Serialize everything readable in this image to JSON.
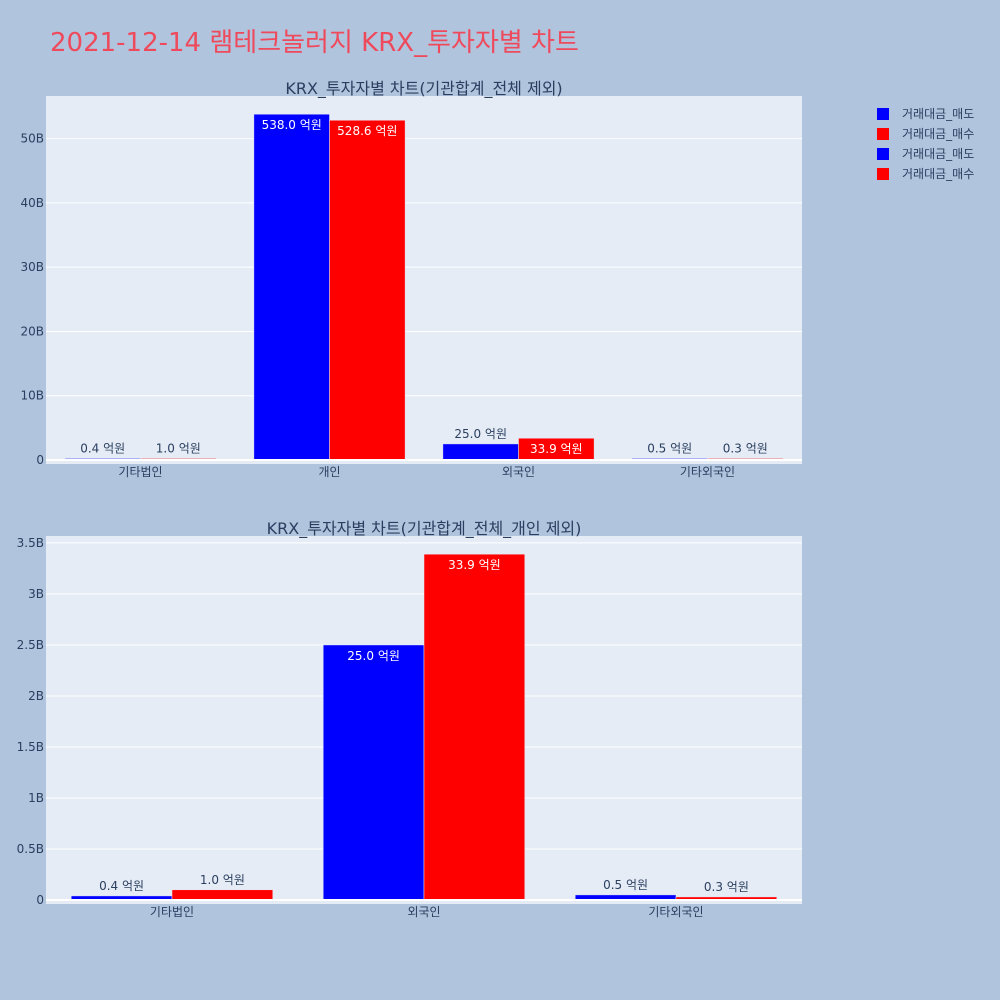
{
  "page_title": "2021-12-14 램테크놀러지 KRX_투자자별 차트",
  "legend": [
    {
      "name": "거래대금_매도",
      "color": "#0000ff"
    },
    {
      "name": "거래대금_매수",
      "color": "#ff0000"
    },
    {
      "name": "거래대금_매도",
      "color": "#0000ff"
    },
    {
      "name": "거래대금_매수",
      "color": "#ff0000"
    }
  ],
  "chart_data": [
    {
      "type": "bar",
      "title": "KRX_투자자별 차트(기관합계_전체 제외)",
      "categories": [
        "기타법인",
        "개인",
        "외국인",
        "기타외국인"
      ],
      "series": [
        {
          "name": "거래대금_매도",
          "color": "#0000ff",
          "values": [
            40000000,
            53800000000,
            2500000000,
            50000000
          ],
          "labels": [
            "0.4 억원",
            "538.0 억원",
            "25.0 억원",
            "0.5 억원"
          ]
        },
        {
          "name": "거래대금_매수",
          "color": "#ff0000",
          "values": [
            100000000,
            52860000000,
            3390000000,
            30000000
          ],
          "labels": [
            "1.0 억원",
            "528.6 억원",
            "33.9 억원",
            "0.3 억원"
          ]
        }
      ],
      "yticks": [
        {
          "value": 0,
          "label": "0"
        },
        {
          "value": 10000000000,
          "label": "10B"
        },
        {
          "value": 20000000000,
          "label": "20B"
        },
        {
          "value": 30000000000,
          "label": "30B"
        },
        {
          "value": 40000000000,
          "label": "40B"
        },
        {
          "value": 50000000000,
          "label": "50B"
        }
      ],
      "ylim": [
        0,
        56630000000
      ],
      "grid": true
    },
    {
      "type": "bar",
      "title": "KRX_투자자별 차트(기관합계_전체_개인 제외)",
      "categories": [
        "기타법인",
        "외국인",
        "기타외국인"
      ],
      "series": [
        {
          "name": "거래대금_매도",
          "color": "#0000ff",
          "values": [
            40000000,
            2500000000,
            50000000
          ],
          "labels": [
            "0.4 억원",
            "25.0 억원",
            "0.5 억원"
          ]
        },
        {
          "name": "거래대금_매수",
          "color": "#ff0000",
          "values": [
            100000000,
            3390000000,
            30000000
          ],
          "labels": [
            "1.0 억원",
            "33.9 억원",
            "0.3 억원"
          ]
        }
      ],
      "yticks": [
        {
          "value": 0,
          "label": "0"
        },
        {
          "value": 500000000,
          "label": "0.5B"
        },
        {
          "value": 1000000000,
          "label": "1B"
        },
        {
          "value": 1500000000,
          "label": "1.5B"
        },
        {
          "value": 2000000000,
          "label": "2B"
        },
        {
          "value": 2500000000,
          "label": "2.5B"
        },
        {
          "value": 3000000000,
          "label": "3B"
        },
        {
          "value": 3500000000,
          "label": "3.5B"
        }
      ],
      "ylim": [
        0,
        3568000000
      ],
      "grid": true
    }
  ]
}
